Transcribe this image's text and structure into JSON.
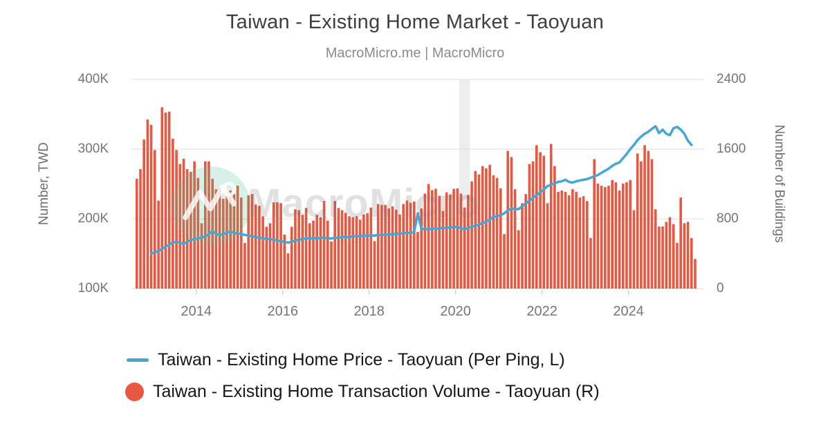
{
  "header": {
    "title": "Taiwan - Existing Home Market - Taoyuan",
    "subtitle": "MacroMicro.me | MacroMicro"
  },
  "watermark": {
    "text": "MacroMicro",
    "logo": "macromicro-mountain-line-logo",
    "circle_color": "rgba(77,189,152,0.22)"
  },
  "chart_data": {
    "type": "combo",
    "title": "Taiwan - Existing Home Market - Taoyuan",
    "grid": "horizontal",
    "legend_position": "bottom-left",
    "x_axis": {
      "min": 2012.5,
      "max": 2025.75,
      "tick_years": [
        2014,
        2016,
        2018,
        2020,
        2022,
        2024
      ],
      "tick_labels": [
        "2014",
        "2016",
        "2018",
        "2020",
        "2022",
        "2024"
      ]
    },
    "left_axis": {
      "label": "Number, TWD",
      "unit": "thousand TWD",
      "min": 100,
      "max": 400,
      "tick_values": [
        100,
        200,
        300,
        400
      ],
      "tick_labels": [
        "100K",
        "200K",
        "300K",
        "400K"
      ]
    },
    "right_axis": {
      "label": "Number of Buildings",
      "unit": "buildings",
      "min": 0,
      "max": 2400,
      "tick_values": [
        0,
        800,
        1600,
        2400
      ],
      "tick_labels": [
        "0",
        "800",
        "1600",
        "2400"
      ]
    },
    "recession_band": {
      "start_year": 2020.08,
      "end_year": 2020.33,
      "color": "#ededed"
    },
    "series": [
      {
        "name": "Taiwan - Existing Home Price - Taoyuan (Per Ping, L)",
        "type": "line",
        "axis": "left",
        "color": "#45a6d5",
        "start_month": "2012-12",
        "frequency": "monthly",
        "values_thousand_twd": [
          150,
          152,
          154,
          157,
          160,
          163,
          166,
          167,
          166,
          164,
          167,
          170,
          171,
          172,
          173,
          175,
          178,
          183,
          178,
          177,
          178,
          180,
          182,
          180,
          179,
          178,
          177,
          176,
          175,
          174,
          173,
          172,
          171,
          171,
          170,
          169,
          168,
          167,
          166,
          167,
          169,
          170,
          171,
          172,
          172,
          172,
          172,
          173,
          173,
          172,
          172,
          173,
          173,
          174,
          174,
          174,
          175,
          175,
          175,
          176,
          176,
          176,
          176,
          177,
          177,
          177,
          178,
          178,
          178,
          179,
          179,
          180,
          180,
          181,
          208,
          186,
          185,
          185,
          186,
          186,
          186,
          187,
          187,
          188,
          188,
          189,
          186,
          185,
          187,
          189,
          190,
          192,
          194,
          196,
          199,
          203,
          204,
          205,
          208,
          212,
          215,
          214,
          214,
          218,
          222,
          226,
          230,
          234,
          238,
          242,
          247,
          249,
          251,
          253,
          254,
          256,
          253,
          252,
          254,
          255,
          256,
          257,
          259,
          261,
          263,
          266,
          269,
          272,
          276,
          279,
          281,
          287,
          293,
          300,
          306,
          313,
          318,
          322,
          325,
          329,
          333,
          323,
          328,
          322,
          320,
          330,
          332,
          328,
          322,
          312,
          306
        ]
      },
      {
        "name": "Taiwan - Existing Home Transaction Volume - Taoyuan (R)",
        "type": "bar",
        "axis": "right",
        "color": "#e8573f",
        "start_month": "2012-08",
        "frequency": "monthly",
        "values_buildings": [
          1260,
          1370,
          1710,
          1940,
          1880,
          1590,
          1010,
          2080,
          2020,
          2030,
          1720,
          1590,
          1430,
          1490,
          1370,
          1340,
          1460,
          1270,
          750,
          1460,
          1460,
          1260,
          1140,
          1150,
          1030,
          1110,
          1125,
          1085,
          1180,
          1045,
          525,
          1070,
          1085,
          965,
          950,
          830,
          710,
          750,
          990,
          990,
          980,
          620,
          405,
          710,
          910,
          900,
          845,
          925,
          750,
          780,
          845,
          820,
          1005,
          780,
          540,
          1005,
          925,
          900,
          870,
          830,
          820,
          830,
          790,
          850,
          865,
          930,
          545,
          970,
          960,
          960,
          920,
          945,
          905,
          850,
          970,
          1010,
          985,
          1000,
          650,
          920,
          1090,
          1200,
          1130,
          1145,
          1065,
          890,
          1105,
          1080,
          1145,
          1150,
          1090,
          930,
          1075,
          1230,
          1350,
          1310,
          1405,
          1380,
          1420,
          1300,
          1270,
          1150,
          625,
          1580,
          1510,
          1140,
          670,
          980,
          1085,
          1430,
          1460,
          1645,
          1565,
          1525,
          980,
          1660,
          1405,
          1110,
          1125,
          1110,
          1070,
          1140,
          1110,
          1045,
          1060,
          1005,
          580,
          1485,
          1205,
          1180,
          1165,
          1180,
          1245,
          1220,
          1125,
          1205,
          1220,
          1245,
          900,
          1550,
          1460,
          1645,
          1580,
          1485,
          910,
          712,
          712,
          765,
          820,
          740,
          525,
          1045,
          750,
          765,
          580,
          340
        ]
      }
    ]
  }
}
